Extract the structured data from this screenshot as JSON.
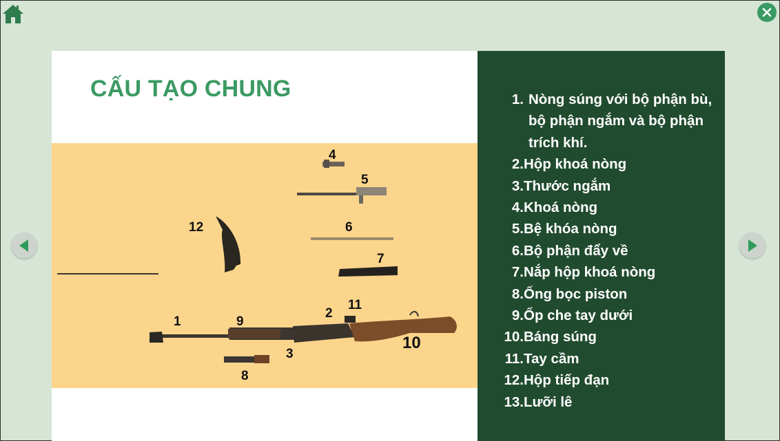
{
  "slide": {
    "title": "CẤU TẠO CHUNG",
    "parts": [
      {
        "num": "1.",
        "text": " Nòng súng với bộ phận bù, bộ phận ngắm và bộ phận trích khí."
      },
      {
        "num": "2.",
        "text": "Hộp khoá nòng"
      },
      {
        "num": "3.",
        "text": "Thước ngắm"
      },
      {
        "num": "4.",
        "text": "Khoá nòng"
      },
      {
        "num": "5.",
        "text": "Bệ khóa nòng"
      },
      {
        "num": "6.",
        "text": "Bộ phận đẩy về"
      },
      {
        "num": "7.",
        "text": " Nắp hộp khoá nòng"
      },
      {
        "num": "8.",
        "text": "Ống bọc piston"
      },
      {
        "num": "9.",
        "text": "Ốp che tay dưới"
      },
      {
        "num": "10.",
        "text": "Báng súng"
      },
      {
        "num": "11.",
        "text": " Tay cầm"
      },
      {
        "num": "12.",
        "text": "Hộp tiếp đạn"
      },
      {
        "num": "13.",
        "text": "Lưỡi lê"
      }
    ],
    "photo_labels": [
      "1",
      "2",
      "3",
      "4",
      "5",
      "6",
      "7",
      "8",
      "9",
      "10",
      "11",
      "12"
    ]
  },
  "icons": {
    "home": "home-icon",
    "close": "close-icon",
    "prev": "arrow-left-icon",
    "next": "arrow-right-icon"
  },
  "colors": {
    "background": "#d6e5d5",
    "title": "#3b9a63",
    "panel": "#214b2f",
    "photo_bg": "#fcd58c",
    "accent_button": "#3a9a63"
  }
}
